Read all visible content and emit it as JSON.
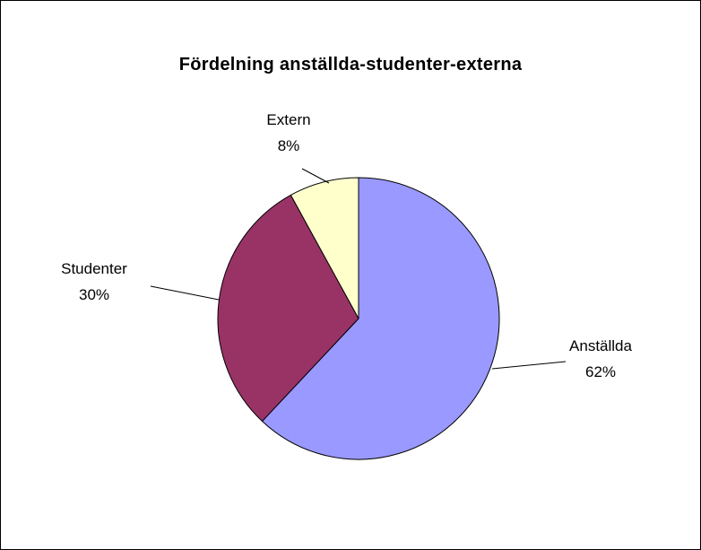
{
  "chart_data": {
    "type": "pie",
    "title": "Fördelning anställda-studenter-externa",
    "slices": [
      {
        "label": "Anställda",
        "value": 62,
        "percent_label": "62%",
        "color": "#9999ff"
      },
      {
        "label": "Studenter",
        "value": 30,
        "percent_label": "30%",
        "color": "#993366"
      },
      {
        "label": "Extern",
        "value": 8,
        "percent_label": "8%",
        "color": "#ffffcc"
      }
    ],
    "start_angle_deg": 0,
    "direction": "clockwise",
    "slice_border_color": "#000000",
    "legend": "none"
  }
}
